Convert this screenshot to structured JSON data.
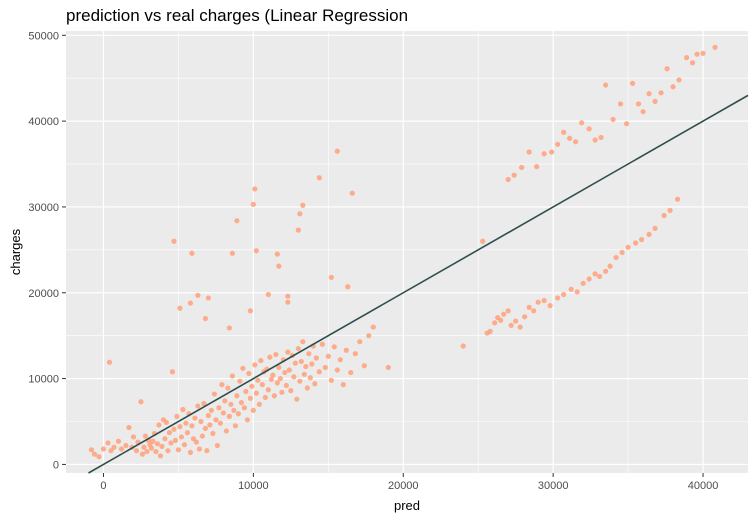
{
  "chart_data": {
    "type": "scatter",
    "title": "prediction vs real charges (Linear Regression",
    "xlabel": "pred",
    "ylabel": "charges",
    "xlim": [
      -2500,
      43000
    ],
    "ylim": [
      -1000,
      50500
    ],
    "x_ticks": [
      0,
      10000,
      20000,
      30000,
      40000
    ],
    "y_ticks": [
      0,
      10000,
      20000,
      30000,
      40000,
      50000
    ],
    "x_tick_labels": [
      "0",
      "10000",
      "20000",
      "30000",
      "40000"
    ],
    "y_tick_labels": [
      "0",
      "10000",
      "20000",
      "30000",
      "40000",
      "50000"
    ],
    "grid": true,
    "legend": "none",
    "panel_color": "#ebebeb",
    "point_color": "#ffa07a",
    "line_color": "#2f4f4f",
    "reference_line": {
      "slope": 1,
      "intercept": 0
    },
    "points": [
      [
        -800,
        1700
      ],
      [
        -600,
        1200
      ],
      [
        -300,
        900
      ],
      [
        0,
        1800
      ],
      [
        300,
        2500
      ],
      [
        400,
        11900
      ],
      [
        500,
        1600
      ],
      [
        700,
        2000
      ],
      [
        1000,
        2700
      ],
      [
        1200,
        1800
      ],
      [
        1500,
        2200
      ],
      [
        1700,
        4300
      ],
      [
        1900,
        2000
      ],
      [
        2000,
        3200
      ],
      [
        2200,
        1600
      ],
      [
        2300,
        2600
      ],
      [
        2500,
        7300
      ],
      [
        2600,
        1200
      ],
      [
        2700,
        2000
      ],
      [
        2800,
        3300
      ],
      [
        2900,
        1500
      ],
      [
        3000,
        2800
      ],
      [
        3100,
        2300
      ],
      [
        3200,
        1900
      ],
      [
        3300,
        2700
      ],
      [
        3400,
        3600
      ],
      [
        3500,
        1500
      ],
      [
        3600,
        2400
      ],
      [
        3700,
        4600
      ],
      [
        3800,
        1000
      ],
      [
        3900,
        2100
      ],
      [
        4000,
        5200
      ],
      [
        4100,
        3000
      ],
      [
        4200,
        4900
      ],
      [
        4300,
        1600
      ],
      [
        4400,
        3700
      ],
      [
        4500,
        2500
      ],
      [
        4600,
        10800
      ],
      [
        4700,
        4100
      ],
      [
        4800,
        2800
      ],
      [
        4900,
        5600
      ],
      [
        5000,
        1700
      ],
      [
        5100,
        4400
      ],
      [
        5200,
        3200
      ],
      [
        5300,
        6400
      ],
      [
        5400,
        2300
      ],
      [
        5500,
        4800
      ],
      [
        5600,
        3700
      ],
      [
        5700,
        5900
      ],
      [
        5800,
        1400
      ],
      [
        5900,
        4500
      ],
      [
        6000,
        3000
      ],
      [
        6100,
        5400
      ],
      [
        6200,
        2600
      ],
      [
        6300,
        6800
      ],
      [
        6400,
        1800
      ],
      [
        6500,
        5000
      ],
      [
        6600,
        3300
      ],
      [
        6700,
        7100
      ],
      [
        6800,
        4200
      ],
      [
        6900,
        1600
      ],
      [
        7000,
        5700
      ],
      [
        7100,
        4600
      ],
      [
        7200,
        6300
      ],
      [
        7300,
        3600
      ],
      [
        7400,
        8200
      ],
      [
        7500,
        5200
      ],
      [
        7600,
        2200
      ],
      [
        7700,
        6600
      ],
      [
        7800,
        4800
      ],
      [
        7900,
        9300
      ],
      [
        8000,
        6000
      ],
      [
        8100,
        7400
      ],
      [
        8200,
        3900
      ],
      [
        8300,
        8900
      ],
      [
        8400,
        5600
      ],
      [
        8500,
        7000
      ],
      [
        8600,
        10300
      ],
      [
        8700,
        6300
      ],
      [
        8800,
        4500
      ],
      [
        8900,
        8000
      ],
      [
        9000,
        5900
      ],
      [
        9100,
        9700
      ],
      [
        9200,
        7200
      ],
      [
        9300,
        11200
      ],
      [
        9400,
        6600
      ],
      [
        9500,
        8500
      ],
      [
        9600,
        5200
      ],
      [
        9700,
        10600
      ],
      [
        9800,
        7700
      ],
      [
        9900,
        9100
      ],
      [
        10000,
        6300
      ],
      [
        10100,
        11600
      ],
      [
        10200,
        8300
      ],
      [
        10300,
        9800
      ],
      [
        10400,
        7000
      ],
      [
        10500,
        12100
      ],
      [
        10600,
        9300
      ],
      [
        10700,
        10800
      ],
      [
        10800,
        7800
      ],
      [
        10900,
        11100
      ],
      [
        11000,
        8700
      ],
      [
        11100,
        12500
      ],
      [
        11200,
        9900
      ],
      [
        11300,
        10400
      ],
      [
        11400,
        8000
      ],
      [
        11500,
        12800
      ],
      [
        11600,
        9500
      ],
      [
        11700,
        11300
      ],
      [
        11800,
        10000
      ],
      [
        11900,
        8400
      ],
      [
        12000,
        12200
      ],
      [
        12100,
        10700
      ],
      [
        12200,
        9200
      ],
      [
        12300,
        13100
      ],
      [
        12400,
        11000
      ],
      [
        12500,
        8600
      ],
      [
        12600,
        12700
      ],
      [
        12700,
        10200
      ],
      [
        12800,
        11800
      ],
      [
        12900,
        7600
      ],
      [
        13000,
        13500
      ],
      [
        13100,
        9700
      ],
      [
        13200,
        12000
      ],
      [
        13300,
        14300
      ],
      [
        13400,
        10500
      ],
      [
        13500,
        11400
      ],
      [
        13600,
        8900
      ],
      [
        13700,
        12900
      ],
      [
        13800,
        10100
      ],
      [
        13900,
        11700
      ],
      [
        14000,
        13800
      ],
      [
        14100,
        9400
      ],
      [
        14200,
        12400
      ],
      [
        14400,
        10800
      ],
      [
        14600,
        14000
      ],
      [
        14800,
        11300
      ],
      [
        15000,
        12600
      ],
      [
        15200,
        9800
      ],
      [
        15400,
        13700
      ],
      [
        15600,
        11000
      ],
      [
        15800,
        12200
      ],
      [
        16000,
        9300
      ],
      [
        16200,
        13300
      ],
      [
        16500,
        10700
      ],
      [
        16800,
        12900
      ],
      [
        17100,
        14300
      ],
      [
        17400,
        11500
      ],
      [
        17700,
        15000
      ],
      [
        18000,
        16000
      ],
      [
        19000,
        11300
      ],
      [
        4700,
        26000
      ],
      [
        5100,
        18200
      ],
      [
        5900,
        24600
      ],
      [
        5800,
        18800
      ],
      [
        6300,
        19700
      ],
      [
        6800,
        17000
      ],
      [
        7000,
        19400
      ],
      [
        8400,
        15900
      ],
      [
        8600,
        24600
      ],
      [
        8900,
        28400
      ],
      [
        9800,
        17900
      ],
      [
        10000,
        30300
      ],
      [
        10100,
        32100
      ],
      [
        10200,
        24900
      ],
      [
        11000,
        19800
      ],
      [
        11600,
        24500
      ],
      [
        11700,
        23100
      ],
      [
        12300,
        18900
      ],
      [
        12300,
        19600
      ],
      [
        13000,
        27300
      ],
      [
        13100,
        29200
      ],
      [
        13300,
        30200
      ],
      [
        14400,
        33400
      ],
      [
        15200,
        21800
      ],
      [
        15600,
        36500
      ],
      [
        16300,
        20700
      ],
      [
        16600,
        31600
      ],
      [
        24000,
        13800
      ],
      [
        25300,
        26000
      ],
      [
        25600,
        15300
      ],
      [
        25800,
        15500
      ],
      [
        26100,
        16500
      ],
      [
        26300,
        17100
      ],
      [
        26500,
        16800
      ],
      [
        26700,
        17500
      ],
      [
        27000,
        17900
      ],
      [
        27200,
        16200
      ],
      [
        27500,
        16700
      ],
      [
        27800,
        16000
      ],
      [
        28100,
        17200
      ],
      [
        28400,
        18300
      ],
      [
        28700,
        17900
      ],
      [
        29000,
        18900
      ],
      [
        29400,
        19100
      ],
      [
        29800,
        18500
      ],
      [
        30300,
        19400
      ],
      [
        30700,
        19800
      ],
      [
        31200,
        20400
      ],
      [
        31600,
        20100
      ],
      [
        32000,
        21100
      ],
      [
        32400,
        21600
      ],
      [
        32800,
        22200
      ],
      [
        33100,
        21900
      ],
      [
        33500,
        22500
      ],
      [
        33800,
        23100
      ],
      [
        34200,
        24100
      ],
      [
        34600,
        24700
      ],
      [
        35000,
        25300
      ],
      [
        35500,
        25800
      ],
      [
        35900,
        26200
      ],
      [
        36400,
        26800
      ],
      [
        36800,
        27500
      ],
      [
        37400,
        29000
      ],
      [
        37800,
        29600
      ],
      [
        38300,
        30900
      ],
      [
        27000,
        33200
      ],
      [
        27400,
        33700
      ],
      [
        27900,
        34600
      ],
      [
        28400,
        36400
      ],
      [
        28900,
        34700
      ],
      [
        29400,
        36200
      ],
      [
        29900,
        36400
      ],
      [
        30300,
        37300
      ],
      [
        30700,
        38700
      ],
      [
        31100,
        38000
      ],
      [
        31500,
        37600
      ],
      [
        31900,
        39800
      ],
      [
        32400,
        39100
      ],
      [
        32800,
        37800
      ],
      [
        33200,
        38100
      ],
      [
        33500,
        44200
      ],
      [
        34000,
        40200
      ],
      [
        34500,
        42000
      ],
      [
        34900,
        39700
      ],
      [
        35300,
        44400
      ],
      [
        35700,
        42000
      ],
      [
        36000,
        41100
      ],
      [
        36400,
        43200
      ],
      [
        36800,
        42300
      ],
      [
        37200,
        43300
      ],
      [
        37600,
        46100
      ],
      [
        38000,
        44000
      ],
      [
        38400,
        44800
      ],
      [
        38900,
        47400
      ],
      [
        39300,
        46800
      ],
      [
        39600,
        47800
      ],
      [
        40000,
        47900
      ],
      [
        40800,
        48600
      ]
    ]
  }
}
